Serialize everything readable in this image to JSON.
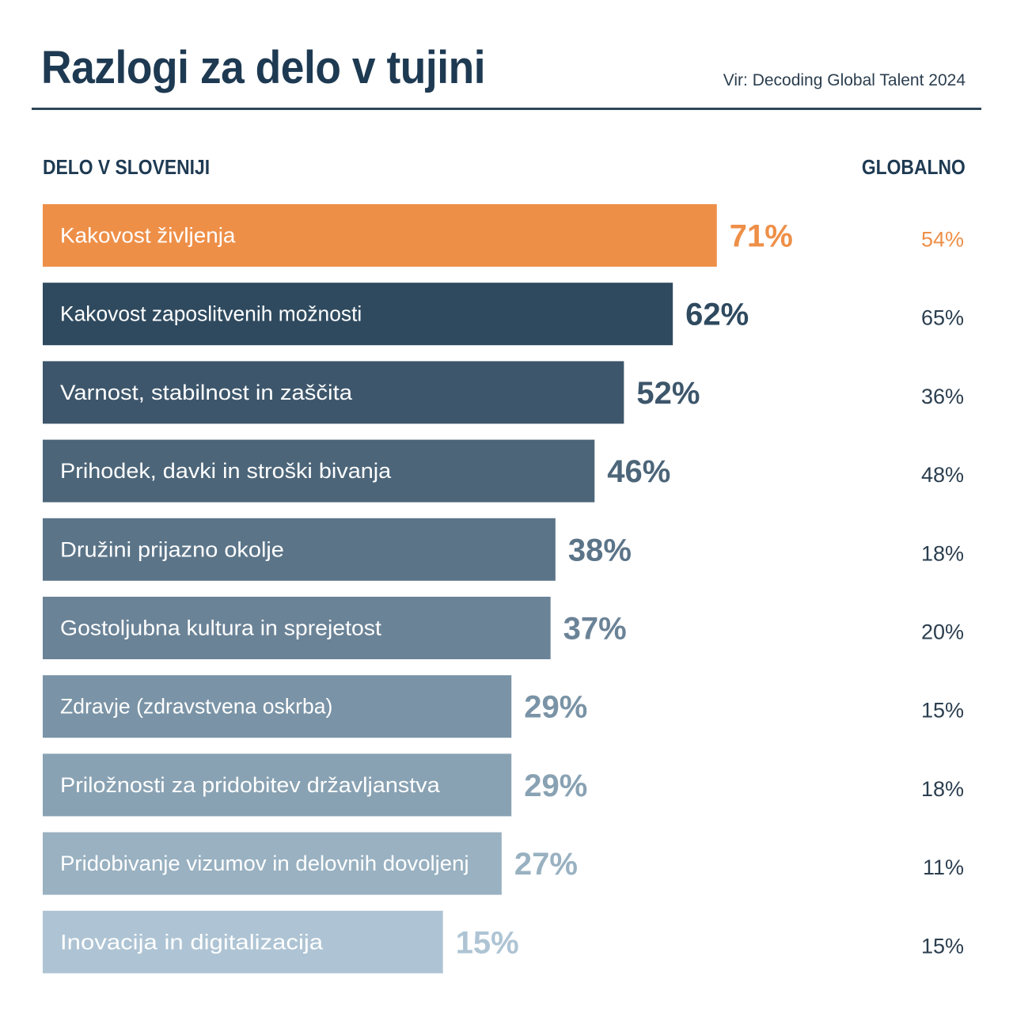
{
  "header": {
    "title": "Razlogi za delo v tujini",
    "source": "Vir: Decoding Global Talent 2024"
  },
  "columns": {
    "left": "DELO V SLOVENIJI",
    "right": "GLOBALNO"
  },
  "chart_data": {
    "type": "bar",
    "orientation": "horizontal",
    "title": "Razlogi za delo v tujini",
    "subtitle": "Vir: Decoding Global Talent 2024",
    "xlabel": "",
    "ylabel": "",
    "grid": false,
    "legend": "none",
    "categories": [
      "Kakovost življenja",
      "Kakovost zaposlitvenih možnosti",
      "Varnost, stabilnost in zaščita",
      "Prihodek, davki in stroški bivanja",
      "Družini prijazno okolje",
      "Gostoljubna kultura in sprejetost",
      "Zdravje (zdravstvena oskrba)",
      "Priložnosti za pridobitev državljanstva",
      "Pridobivanje vizumov in delovnih dovoljenj",
      "Inovacija in digitalizacija"
    ],
    "series": [
      {
        "name": "DELO V SLOVENIJI",
        "values": [
          71,
          62,
          52,
          46,
          38,
          37,
          29,
          29,
          27,
          15
        ],
        "labels": [
          "71%",
          "62%",
          "52%",
          "46%",
          "38%",
          "37%",
          "29%",
          "29%",
          "27%",
          "15%"
        ]
      },
      {
        "name": "GLOBALNO",
        "values": [
          54,
          65,
          36,
          48,
          18,
          20,
          15,
          18,
          11,
          15
        ],
        "labels": [
          "54%",
          "65%",
          "36%",
          "48%",
          "18%",
          "20%",
          "15%",
          "18%",
          "11%",
          "15%"
        ]
      }
    ],
    "colors": {
      "highlight": "#ee8f48",
      "bars": [
        "#ee8f48",
        "#2f4a5f",
        "#3d566b",
        "#4c6579",
        "#5b7488",
        "#6b8397",
        "#7a93a6",
        "#89a2b3",
        "#99b1c1",
        "#aec4d4"
      ],
      "global_text": "#2b3e4f",
      "global_highlight_text": "#ee8f48"
    }
  }
}
